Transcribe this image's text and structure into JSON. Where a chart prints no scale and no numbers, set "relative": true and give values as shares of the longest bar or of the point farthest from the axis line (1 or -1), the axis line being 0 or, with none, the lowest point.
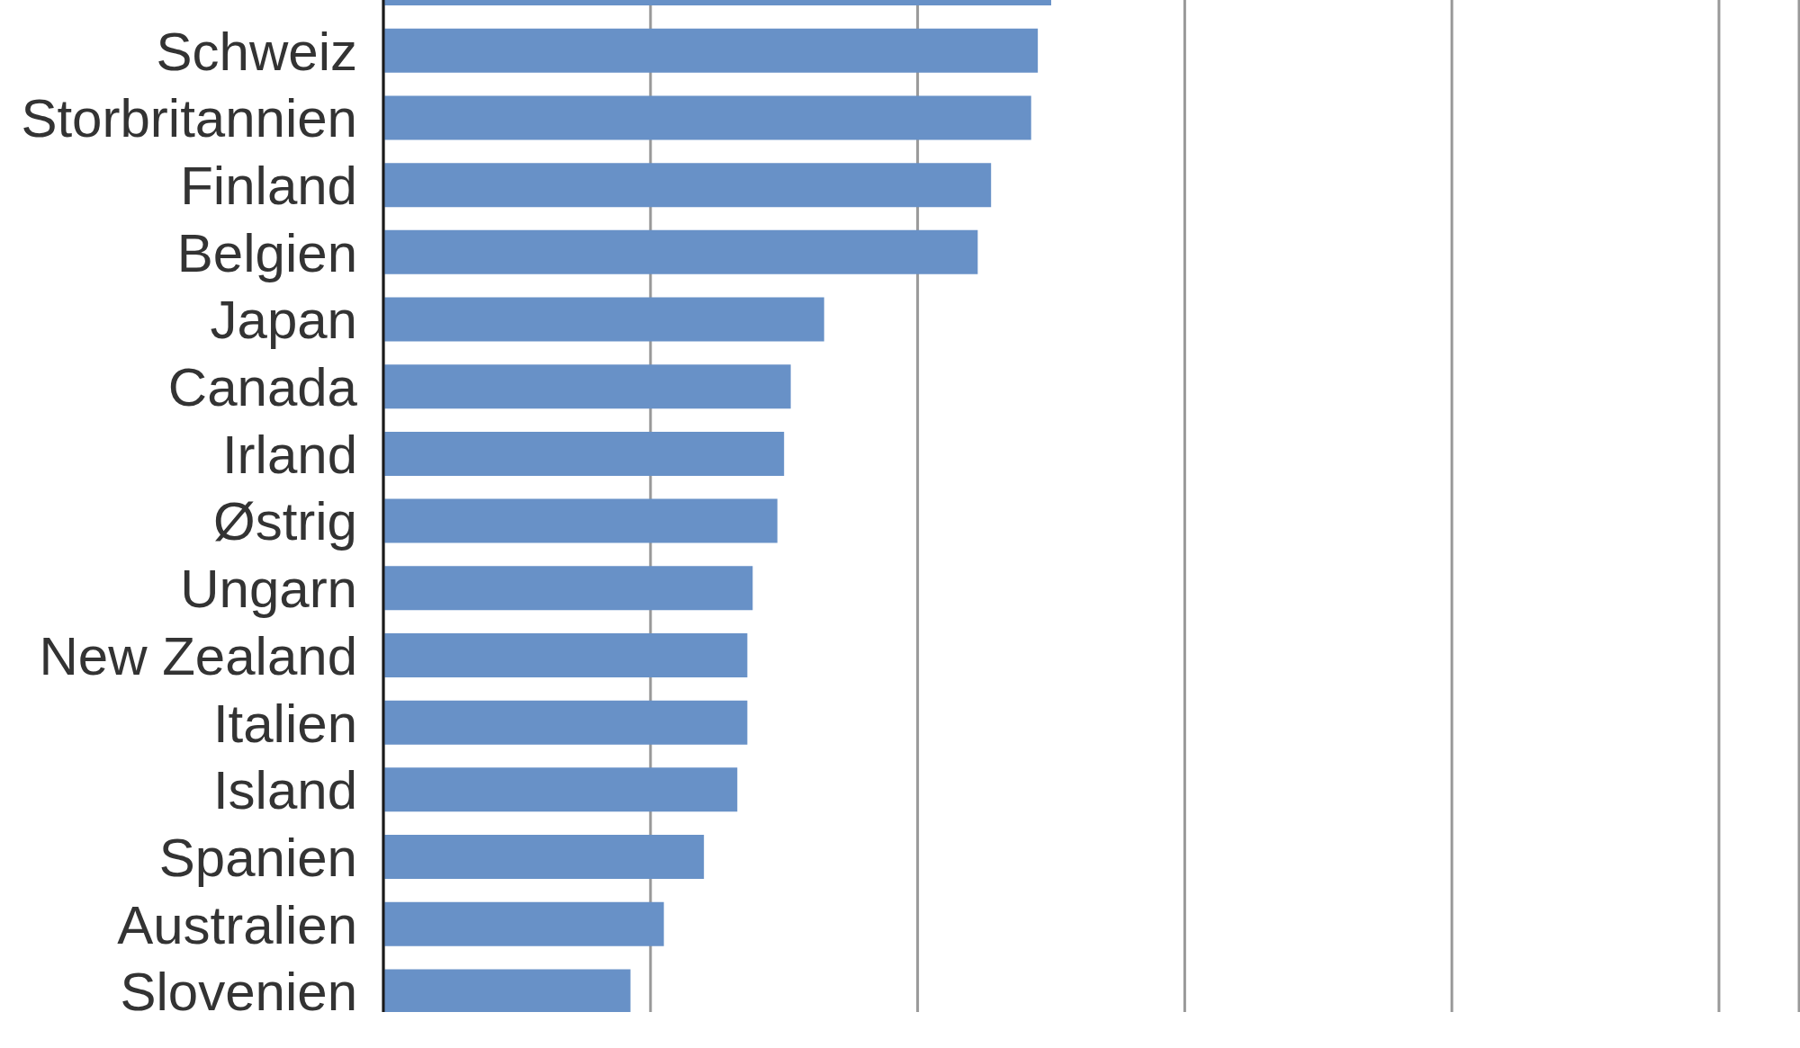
{
  "chart_data": {
    "type": "bar",
    "orientation": "horizontal",
    "relative": true,
    "categories": [
      null,
      "Schweiz",
      "Storbritannien",
      "Finland",
      "Belgien",
      "Japan",
      "Canada",
      "Irland",
      "Østrig",
      "Ungarn",
      "New Zealand",
      "Italien",
      "Island",
      "Spanien",
      "Australien",
      "Slovenien"
    ],
    "values": [
      1,
      0.98,
      0.97,
      0.91,
      0.89,
      0.66,
      0.61,
      0.6,
      0.59,
      0.553,
      0.545,
      0.545,
      0.53,
      0.48,
      0.42,
      0.37
    ],
    "color": "#6891c7",
    "xlim": [
      0,
      2.12
    ],
    "grid": "x",
    "tick_labels": "y"
  }
}
